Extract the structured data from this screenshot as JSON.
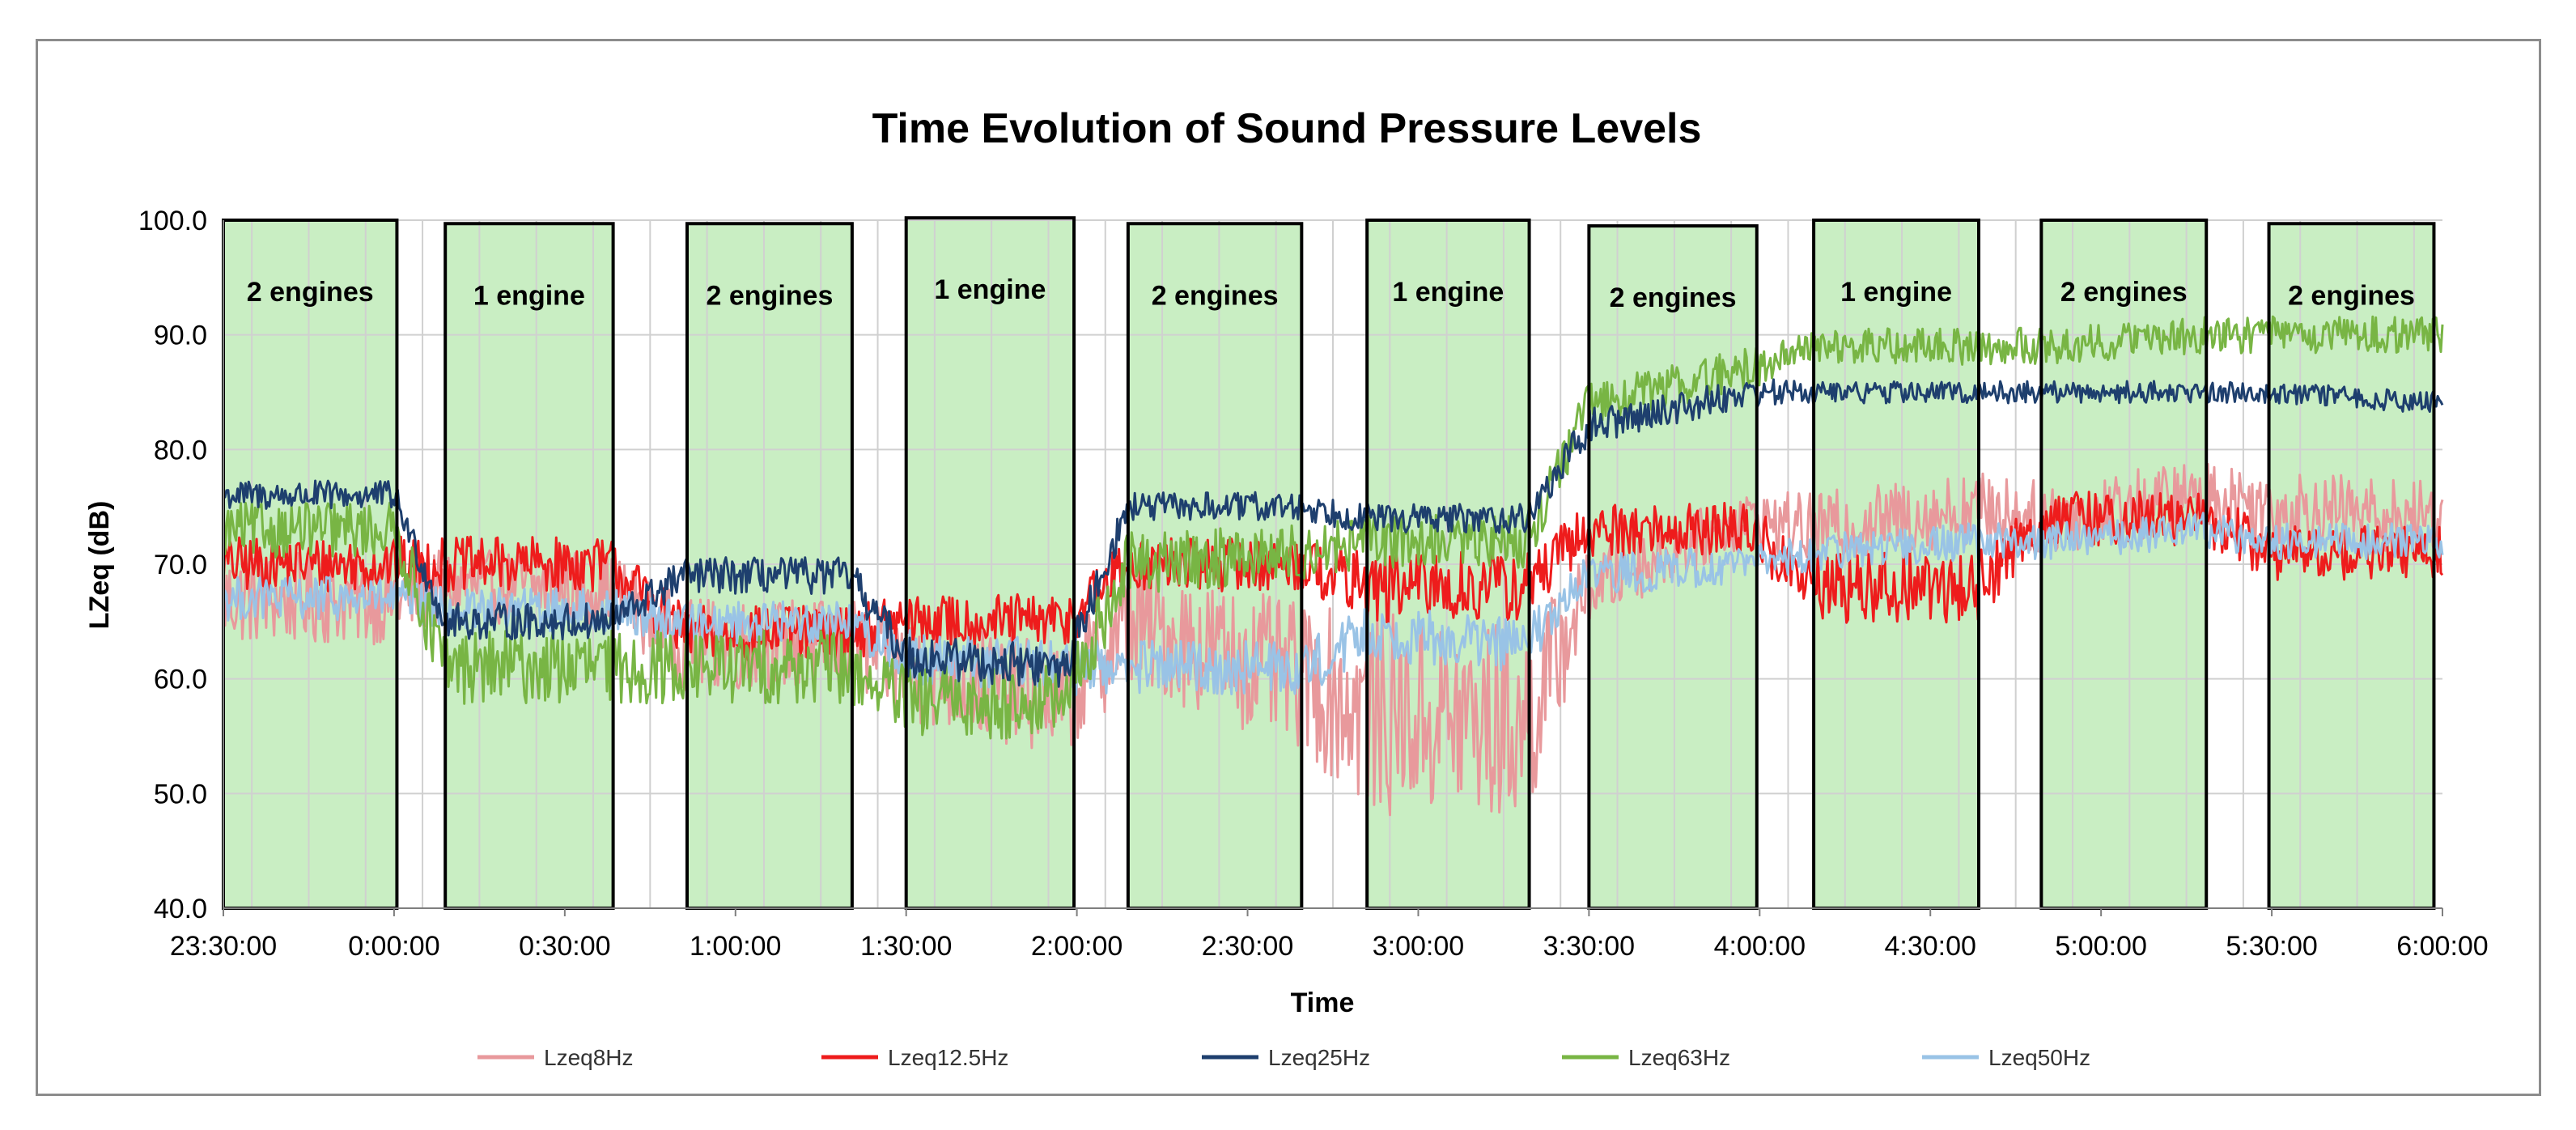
{
  "chart_data": {
    "type": "line",
    "title": "Time Evolution of Sound Pressure Levels",
    "xlabel": "Time",
    "ylabel": "LZeq (dB)",
    "ylim": [
      40,
      100
    ],
    "yticks": [
      "40.0",
      "50.0",
      "60.0",
      "70.0",
      "80.0",
      "90.0",
      "100.0"
    ],
    "xlim_minutes": [
      0,
      390
    ],
    "xticks": [
      {
        "label": "23:30:00",
        "t": 0
      },
      {
        "label": "0:00:00",
        "t": 30
      },
      {
        "label": "0:30:00",
        "t": 60
      },
      {
        "label": "1:00:00",
        "t": 90
      },
      {
        "label": "1:30:00",
        "t": 120
      },
      {
        "label": "2:00:00",
        "t": 150
      },
      {
        "label": "2:30:00",
        "t": 180
      },
      {
        "label": "3:00:00",
        "t": 210
      },
      {
        "label": "3:30:00",
        "t": 240
      },
      {
        "label": "4:00:00",
        "t": 270
      },
      {
        "label": "4:30:00",
        "t": 300
      },
      {
        "label": "5:00:00",
        "t": 330
      },
      {
        "label": "5:30:00",
        "t": 360
      },
      {
        "label": "6:00:00",
        "t": 390
      }
    ],
    "x_units": "minutes after 23:30:00",
    "grid": true,
    "legend_position": "bottom",
    "shaded_periods": [
      {
        "label": "2 engines",
        "start": 0,
        "end": 30.5,
        "top": 100
      },
      {
        "label": "1 engine",
        "start": 39,
        "end": 68.5,
        "top": 99.7
      },
      {
        "label": "2 engines",
        "start": 81.5,
        "end": 110.5,
        "top": 99.7
      },
      {
        "label": "1 engine",
        "start": 120,
        "end": 149.5,
        "top": 100.2
      },
      {
        "label": "2 engines",
        "start": 159,
        "end": 189.5,
        "top": 99.7
      },
      {
        "label": "1 engine",
        "start": 201,
        "end": 229.5,
        "top": 100
      },
      {
        "label": "2 engines",
        "start": 240,
        "end": 269.5,
        "top": 99.5
      },
      {
        "label": "1 engine",
        "start": 279.5,
        "end": 308.5,
        "top": 100
      },
      {
        "label": "2 engines",
        "start": 319.5,
        "end": 348.5,
        "top": 100
      },
      {
        "label": "2 engines",
        "start": 359.5,
        "end": 388.5,
        "top": 99.7
      }
    ],
    "series": [
      {
        "name": "Lzeq8Hz",
        "color": "#e8999c",
        "x": [
          0,
          30,
          39,
          68,
          81,
          110,
          120,
          148,
          159,
          190,
          201,
          229,
          240,
          268,
          279,
          308,
          320,
          348,
          360,
          390
        ],
        "values": [
          67,
          67,
          68,
          68,
          63,
          63,
          61,
          58,
          65,
          60,
          57,
          56,
          68,
          74,
          73,
          75,
          74,
          76,
          75,
          74
        ],
        "noise": [
          2.5,
          2.5,
          2.0,
          2.0,
          2.5,
          2.5,
          3.0,
          3.0,
          3.5,
          4.0,
          5.5,
          5.5,
          2.0,
          1.5,
          2.0,
          2.0,
          2.0,
          2.0,
          2.0,
          2.0
        ]
      },
      {
        "name": "Lzeq12.5Hz",
        "color": "#ee1c1c",
        "x": [
          0,
          30,
          39,
          68,
          81,
          110,
          120,
          148,
          159,
          190,
          201,
          229,
          240,
          268,
          279,
          308,
          320,
          348,
          360,
          390
        ],
        "values": [
          70,
          70,
          70,
          70,
          64,
          64,
          65,
          65,
          70,
          70,
          68,
          68,
          73,
          73,
          68,
          68,
          74,
          74,
          71,
          71
        ],
        "noise": [
          1.5,
          1.5,
          1.5,
          1.5,
          1.5,
          1.5,
          1.5,
          1.5,
          1.5,
          1.5,
          2.0,
          2.0,
          1.5,
          1.5,
          2.0,
          2.0,
          1.5,
          1.5,
          1.5,
          1.5
        ]
      },
      {
        "name": "Lzeq25Hz",
        "color": "#1e3f6e",
        "x": [
          0,
          30,
          39,
          68,
          81,
          110,
          120,
          148,
          159,
          190,
          201,
          229,
          240,
          268,
          279,
          308,
          320,
          348,
          360,
          390
        ],
        "values": [
          76,
          76,
          65,
          65,
          69,
          69,
          62,
          61,
          75,
          75,
          74,
          74,
          82,
          85,
          85,
          85,
          85,
          85,
          85,
          84
        ],
        "noise": [
          0.8,
          0.8,
          1.0,
          1.0,
          1.0,
          1.0,
          1.2,
          1.2,
          0.8,
          0.8,
          0.8,
          0.8,
          1.0,
          0.8,
          0.6,
          0.6,
          0.6,
          0.6,
          0.6,
          0.6
        ]
      },
      {
        "name": "Lzeq63Hz",
        "color": "#78b544",
        "x": [
          0,
          30,
          39,
          68,
          81,
          110,
          120,
          148,
          159,
          190,
          201,
          229,
          240,
          268,
          279,
          308,
          320,
          348,
          360,
          390
        ],
        "values": [
          73,
          73,
          61,
          61,
          61,
          61,
          58,
          58,
          70,
          71,
          72,
          72,
          84,
          87,
          89,
          89,
          89,
          90,
          90,
          90
        ],
        "noise": [
          1.5,
          1.5,
          2.0,
          2.0,
          2.0,
          2.0,
          2.0,
          2.0,
          1.8,
          1.5,
          1.5,
          1.5,
          1.2,
          1.2,
          1.0,
          1.0,
          1.0,
          1.0,
          1.0,
          1.0
        ]
      },
      {
        "name": "Lzeq50Hz",
        "color": "#99c3e6",
        "x": [
          0,
          30,
          39,
          68,
          81,
          110,
          120,
          148,
          159,
          190,
          201,
          229,
          240,
          268,
          279,
          308,
          320,
          348,
          360,
          390
        ],
        "values": [
          67,
          67,
          66,
          66,
          65,
          65,
          62,
          61,
          61,
          61,
          64,
          63,
          69,
          70,
          71,
          72,
          72,
          73,
          72,
          72
        ],
        "noise": [
          1.2,
          1.2,
          1.2,
          1.2,
          1.2,
          1.2,
          1.5,
          1.5,
          1.5,
          1.5,
          1.5,
          1.5,
          1.2,
          1.0,
          1.0,
          1.0,
          1.0,
          1.0,
          1.0,
          1.0
        ]
      }
    ]
  },
  "colors": {
    "shade_fill": "#c9eec3",
    "shade_border": "#000000",
    "grid": "#d0d0d0",
    "axis": "#7f7f7f"
  }
}
